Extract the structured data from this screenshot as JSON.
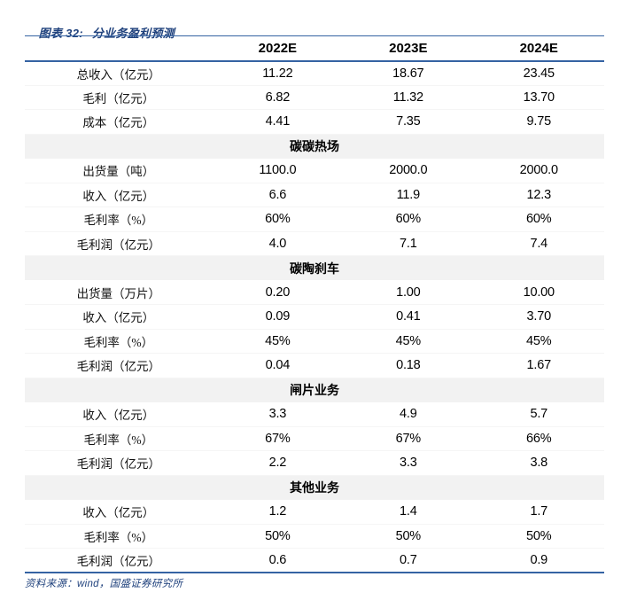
{
  "figure": {
    "title_label": "图表 32:",
    "title_text": "分业务盈利预测",
    "source": "资料来源：wind，国盛证券研究所"
  },
  "colors": {
    "accent_blue_border": "#3563a3",
    "title_navy": "#20427d",
    "section_bg": "#f2f2f2",
    "body_text": "#000000"
  },
  "table": {
    "columns": [
      "2022E",
      "2023E",
      "2024E"
    ],
    "sections": [
      {
        "header": null,
        "rows": [
          {
            "label": "总收入（亿元）",
            "values": [
              "11.22",
              "18.67",
              "23.45"
            ]
          },
          {
            "label": "毛利（亿元）",
            "values": [
              "6.82",
              "11.32",
              "13.70"
            ]
          },
          {
            "label": "成本（亿元）",
            "values": [
              "4.41",
              "7.35",
              "9.75"
            ]
          }
        ]
      },
      {
        "header": "碳碳热场",
        "rows": [
          {
            "label": "出货量（吨）",
            "values": [
              "1100.0",
              "2000.0",
              "2000.0"
            ]
          },
          {
            "label": "收入（亿元）",
            "values": [
              "6.6",
              "11.9",
              "12.3"
            ]
          },
          {
            "label": "毛利率（%）",
            "values": [
              "60%",
              "60%",
              "60%"
            ]
          },
          {
            "label": "毛利润（亿元）",
            "values": [
              "4.0",
              "7.1",
              "7.4"
            ]
          }
        ]
      },
      {
        "header": "碳陶刹车",
        "rows": [
          {
            "label": "出货量（万片）",
            "values": [
              "0.20",
              "1.00",
              "10.00"
            ]
          },
          {
            "label": "收入（亿元）",
            "values": [
              "0.09",
              "0.41",
              "3.70"
            ]
          },
          {
            "label": "毛利率（%）",
            "values": [
              "45%",
              "45%",
              "45%"
            ]
          },
          {
            "label": "毛利润（亿元）",
            "values": [
              "0.04",
              "0.18",
              "1.67"
            ]
          }
        ]
      },
      {
        "header": "闸片业务",
        "rows": [
          {
            "label": "收入（亿元）",
            "values": [
              "3.3",
              "4.9",
              "5.7"
            ]
          },
          {
            "label": "毛利率（%）",
            "values": [
              "67%",
              "67%",
              "66%"
            ]
          },
          {
            "label": "毛利润（亿元）",
            "values": [
              "2.2",
              "3.3",
              "3.8"
            ]
          }
        ]
      },
      {
        "header": "其他业务",
        "rows": [
          {
            "label": "收入（亿元）",
            "values": [
              "1.2",
              "1.4",
              "1.7"
            ]
          },
          {
            "label": "毛利率（%）",
            "values": [
              "50%",
              "50%",
              "50%"
            ]
          },
          {
            "label": "毛利润（亿元）",
            "values": [
              "0.6",
              "0.7",
              "0.9"
            ]
          }
        ]
      }
    ]
  }
}
